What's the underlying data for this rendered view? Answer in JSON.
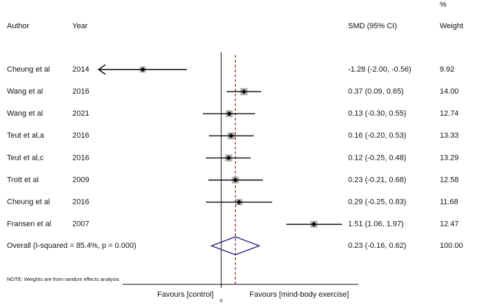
{
  "chart_data": {
    "type": "forest",
    "columns": {
      "author": "Author",
      "year": "Year",
      "estimate": "SMD (95% CI)",
      "weight_unit": "%",
      "weight": "Weight"
    },
    "studies": [
      {
        "author": "Cheung et al",
        "year": 2014,
        "smd": -1.28,
        "lower": -2.0,
        "upper": -0.56,
        "label": "-1.28 (-2.00, -0.56)",
        "weight": 9.92
      },
      {
        "author": "Wang et al",
        "year": 2016,
        "smd": 0.37,
        "lower": 0.09,
        "upper": 0.65,
        "label": "0.37 (0.09, 0.65)",
        "weight": {
          "value": 14.0,
          "label": "14.00"
        }
      },
      {
        "author": "Wang et al",
        "year": 2021,
        "smd": 0.13,
        "lower": -0.3,
        "upper": 0.55,
        "label": "0.13 (-0.30, 0.55)",
        "weight": 12.74
      },
      {
        "author": "Teut et al,a",
        "year": 2016,
        "smd": 0.16,
        "lower": -0.2,
        "upper": 0.53,
        "label": "0.16 (-0.20, 0.53)",
        "weight": 13.33
      },
      {
        "author": "Teut et al,c",
        "year": 2016,
        "smd": 0.12,
        "lower": -0.25,
        "upper": 0.48,
        "label": "0.12 (-0.25, 0.48)",
        "weight": 13.29
      },
      {
        "author": "Trott et al",
        "year": 2009,
        "smd": 0.23,
        "lower": -0.21,
        "upper": 0.68,
        "label": "0.23 (-0.21, 0.68)",
        "weight": 12.58
      },
      {
        "author": "Cheung et al",
        "year": 2016,
        "smd": 0.29,
        "lower": -0.25,
        "upper": 0.83,
        "label": "0.29 (-0.25, 0.83)",
        "weight": 11.68
      },
      {
        "author": "Fransen et al",
        "year": 2007,
        "smd": 1.51,
        "lower": 1.06,
        "upper": 1.97,
        "label": "1.51 (1.06, 1.97)",
        "weight": 12.47
      }
    ],
    "overall": {
      "author": "Overall  (I-squared = 85.4%, p = 0.000)",
      "smd": 0.23,
      "lower": -0.16,
      "upper": 0.62,
      "label": "0.23 (-0.16, 0.62)",
      "weight": {
        "value": 100.0,
        "label": "100.00"
      }
    },
    "note": "NOTE: Weights are from random effects analysis",
    "x_label_left": "Favours [control]",
    "x_label_right": "Favours [mind-body exercise]",
    "xlim": [
      -2,
      2
    ],
    "xticks": [
      0
    ],
    "point_color": "#000000",
    "box_color": "#b0b0b0",
    "diamond_color": "#1c1c78",
    "overall_line_color": "#a01818"
  }
}
